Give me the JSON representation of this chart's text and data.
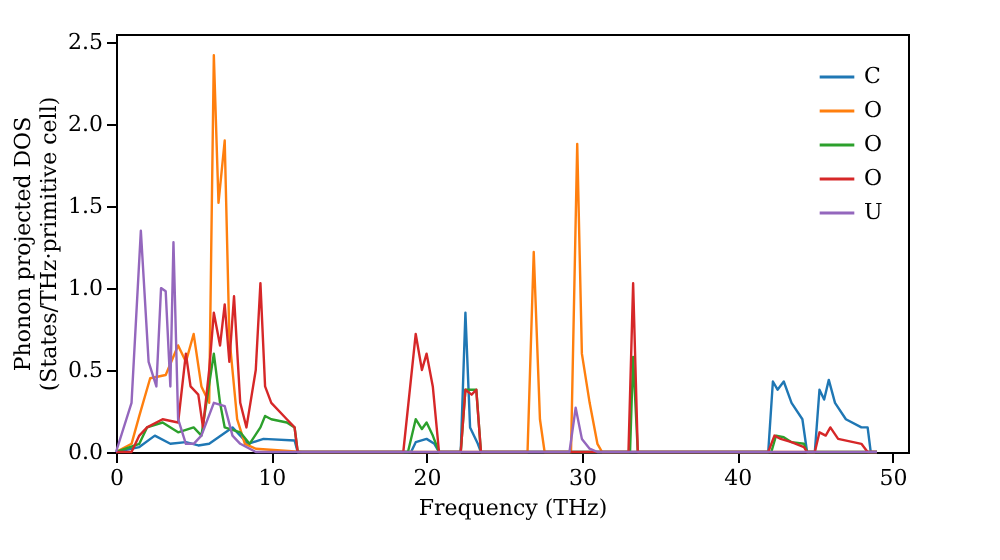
{
  "chart_data": {
    "type": "line",
    "xlabel": "Frequency (THz)",
    "ylabel": "Phonon projected DOS\n(States/THz·primitive cell)",
    "xlim": [
      0,
      51
    ],
    "xticks": [
      0,
      10,
      20,
      30,
      40,
      50
    ],
    "ylim": [
      0,
      2.55
    ],
    "yticks": [
      {
        "value": 0,
        "label": "0.0"
      },
      {
        "value": 0.5,
        "label": "0.5"
      },
      {
        "value": 1,
        "label": "1.0"
      },
      {
        "value": 1.5,
        "label": "1.5"
      },
      {
        "value": 2,
        "label": "2.0"
      },
      {
        "value": 2.5,
        "label": "2.5"
      }
    ],
    "grid": false,
    "legend": "top right",
    "marker": "none",
    "line_style": "solid",
    "series": [
      {
        "name": "C",
        "color": "#1f77b4",
        "x": [
          0,
          1.5,
          2.5,
          3.5,
          4.5,
          5.3,
          6,
          7.5,
          8.5,
          9.5,
          11.5,
          11.7,
          19,
          19.3,
          20,
          20.5,
          20.8,
          22.2,
          22.5,
          22.8,
          23.3,
          23.5,
          42,
          42.3,
          42.6,
          43,
          43.5,
          44.2,
          44.5,
          45,
          45.3,
          45.6,
          45.9,
          46.3,
          47,
          48,
          48.4,
          48.6,
          49
        ],
        "values": [
          0,
          0.03,
          0.1,
          0.05,
          0.06,
          0.04,
          0.05,
          0.15,
          0.05,
          0.08,
          0.07,
          0,
          0,
          0.06,
          0.08,
          0.05,
          0,
          0,
          0.85,
          0.15,
          0.05,
          0,
          0,
          0.43,
          0.38,
          0.43,
          0.3,
          0.2,
          0,
          0,
          0.38,
          0.32,
          0.44,
          0.3,
          0.2,
          0.15,
          0.15,
          0,
          0
        ]
      },
      {
        "name": "O",
        "color": "#ff7f0e",
        "x": [
          0,
          1,
          1.5,
          2.2,
          3.2,
          4,
          4.5,
          5,
          5.5,
          6,
          6.3,
          6.6,
          7,
          7.3,
          7.8,
          8.3,
          9,
          12,
          26.5,
          26.9,
          27.3,
          27.6,
          29.3,
          29.7,
          30,
          30.5,
          31,
          31.3,
          49
        ],
        "values": [
          0,
          0.05,
          0.22,
          0.45,
          0.47,
          0.65,
          0.55,
          0.72,
          0.4,
          0.3,
          2.42,
          1.52,
          1.9,
          0.7,
          0.2,
          0.05,
          0.02,
          0,
          0,
          1.22,
          0.2,
          0,
          0,
          1.88,
          0.6,
          0.3,
          0.05,
          0,
          0
        ]
      },
      {
        "name": "O",
        "color": "#2ca02c",
        "x": [
          0,
          1.5,
          2,
          3,
          4,
          5,
          5.5,
          6.3,
          6.7,
          7,
          8,
          8.6,
          9.3,
          9.6,
          10,
          11,
          11.5,
          11.7,
          18.8,
          19.3,
          19.7,
          20,
          20.4,
          20.8,
          22.2,
          22.5,
          23.2,
          23.5,
          33.1,
          33.3,
          33.6,
          42.2,
          42.5,
          43,
          43.5,
          44.3,
          44.5,
          49
        ],
        "values": [
          0,
          0.05,
          0.15,
          0.18,
          0.12,
          0.15,
          0.1,
          0.6,
          0.3,
          0.15,
          0.12,
          0.05,
          0.15,
          0.22,
          0.2,
          0.18,
          0.15,
          0,
          0,
          0.2,
          0.14,
          0.18,
          0.1,
          0,
          0,
          0.38,
          0.38,
          0,
          0,
          0.58,
          0,
          0,
          0.1,
          0.09,
          0.06,
          0.05,
          0,
          0
        ]
      },
      {
        "name": "O",
        "color": "#d62728",
        "x": [
          0,
          1,
          1.5,
          2,
          3,
          4,
          4.5,
          4.8,
          5.3,
          5.6,
          6,
          6.3,
          6.7,
          7,
          7.3,
          7.6,
          8,
          8.4,
          9,
          9.3,
          9.6,
          10,
          11,
          11.5,
          11.7,
          18.5,
          19.3,
          19.7,
          20,
          20.4,
          20.8,
          22.2,
          22.5,
          22.9,
          23.2,
          23.5,
          33,
          33.3,
          33.6,
          42,
          42.4,
          42.8,
          43.5,
          44.3,
          44.5,
          45,
          45.3,
          45.7,
          46,
          46.5,
          48,
          48.4,
          49
        ],
        "values": [
          0,
          0,
          0.1,
          0.15,
          0.2,
          0.18,
          0.6,
          0.4,
          0.35,
          0.15,
          0.5,
          0.85,
          0.65,
          0.9,
          0.55,
          0.95,
          0.3,
          0.15,
          0.5,
          1.03,
          0.4,
          0.3,
          0.2,
          0.15,
          0,
          0,
          0.72,
          0.5,
          0.6,
          0.4,
          0,
          0,
          0.38,
          0.35,
          0.38,
          0,
          0,
          1.03,
          0,
          0,
          0.1,
          0.08,
          0.06,
          0.03,
          0,
          0,
          0.12,
          0.1,
          0.15,
          0.08,
          0.05,
          0,
          0
        ]
      },
      {
        "name": "U",
        "color": "#9467bd",
        "x": [
          0,
          1,
          1.6,
          2.1,
          2.6,
          2.9,
          3.2,
          3.5,
          3.7,
          4,
          4.5,
          5,
          5.5,
          6.3,
          7,
          7.5,
          8,
          9,
          29.2,
          29.6,
          30,
          30.5,
          31,
          49
        ],
        "values": [
          0,
          0.3,
          1.35,
          0.55,
          0.4,
          1.0,
          0.98,
          0.4,
          1.28,
          0.2,
          0.05,
          0.05,
          0.1,
          0.3,
          0.28,
          0.1,
          0.05,
          0,
          0,
          0.27,
          0.08,
          0.02,
          0,
          0
        ]
      }
    ]
  }
}
